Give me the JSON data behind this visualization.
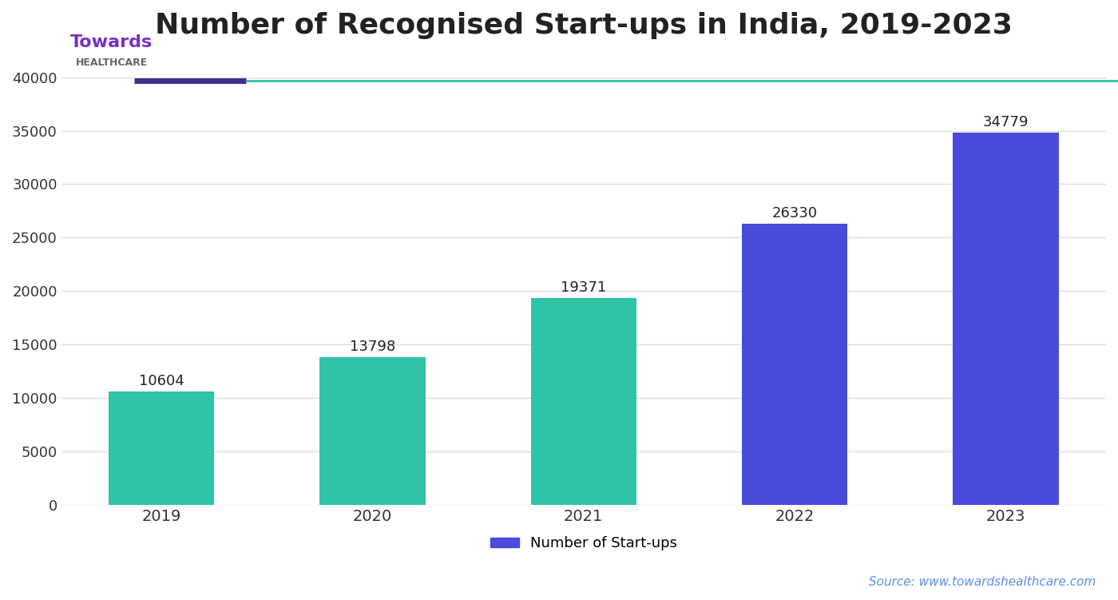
{
  "title": "Number of Recognised Start-ups in India, 2019-2023",
  "categories": [
    "2019",
    "2020",
    "2021",
    "2022",
    "2023"
  ],
  "values": [
    10604,
    13798,
    19371,
    26330,
    34779
  ],
  "bar_colors": [
    "#2EC4A5",
    "#2EC4A5",
    "#2EC4A5",
    "#4A4ADB",
    "#4A4ADB"
  ],
  "value_labels": [
    "10604",
    "13798",
    "19371",
    "26330",
    "34779"
  ],
  "ylim": [
    0,
    42000
  ],
  "yticks": [
    0,
    5000,
    10000,
    15000,
    20000,
    25000,
    30000,
    35000,
    40000
  ],
  "legend_label": "Number of Start-ups",
  "legend_color": "#4A4ADB",
  "source_text": "Source: www.towardshealthcare.com",
  "title_fontsize": 26,
  "bar_width": 0.5,
  "background_color": "#ffffff",
  "grid_color": "#dddddd",
  "decoration_line1_color": "#3B2F8F",
  "decoration_line2_color": "#2EC4A5",
  "label_fontsize": 13,
  "tick_fontsize": 13,
  "logo_towards_color": "#7B2FBE",
  "logo_healthcare_color": "#666666",
  "source_color": "#5B8DEF"
}
